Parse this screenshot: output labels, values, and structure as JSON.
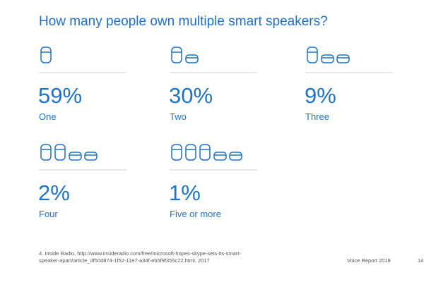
{
  "chart_data": {
    "type": "pictograph",
    "title": "How many people own multiple smart speakers?",
    "categories": [
      "One",
      "Two",
      "Three",
      "Four",
      "Five or more"
    ],
    "values": [
      59,
      30,
      9,
      2,
      1
    ],
    "value_labels": [
      "59%",
      "30%",
      "9%",
      "2%",
      "1%"
    ],
    "color": "#1f72c4",
    "footnote": [
      "4. Inside Radio, http://www.insideradio.com/free/microsoft-hopes-skype-sets-its-smart-",
      "speaker-apart/article_df50d874-1f52-11e7-a34f-eb5f9f355c22.html, 2017"
    ],
    "footer": "Voice Report 2019",
    "page_number": "14"
  }
}
